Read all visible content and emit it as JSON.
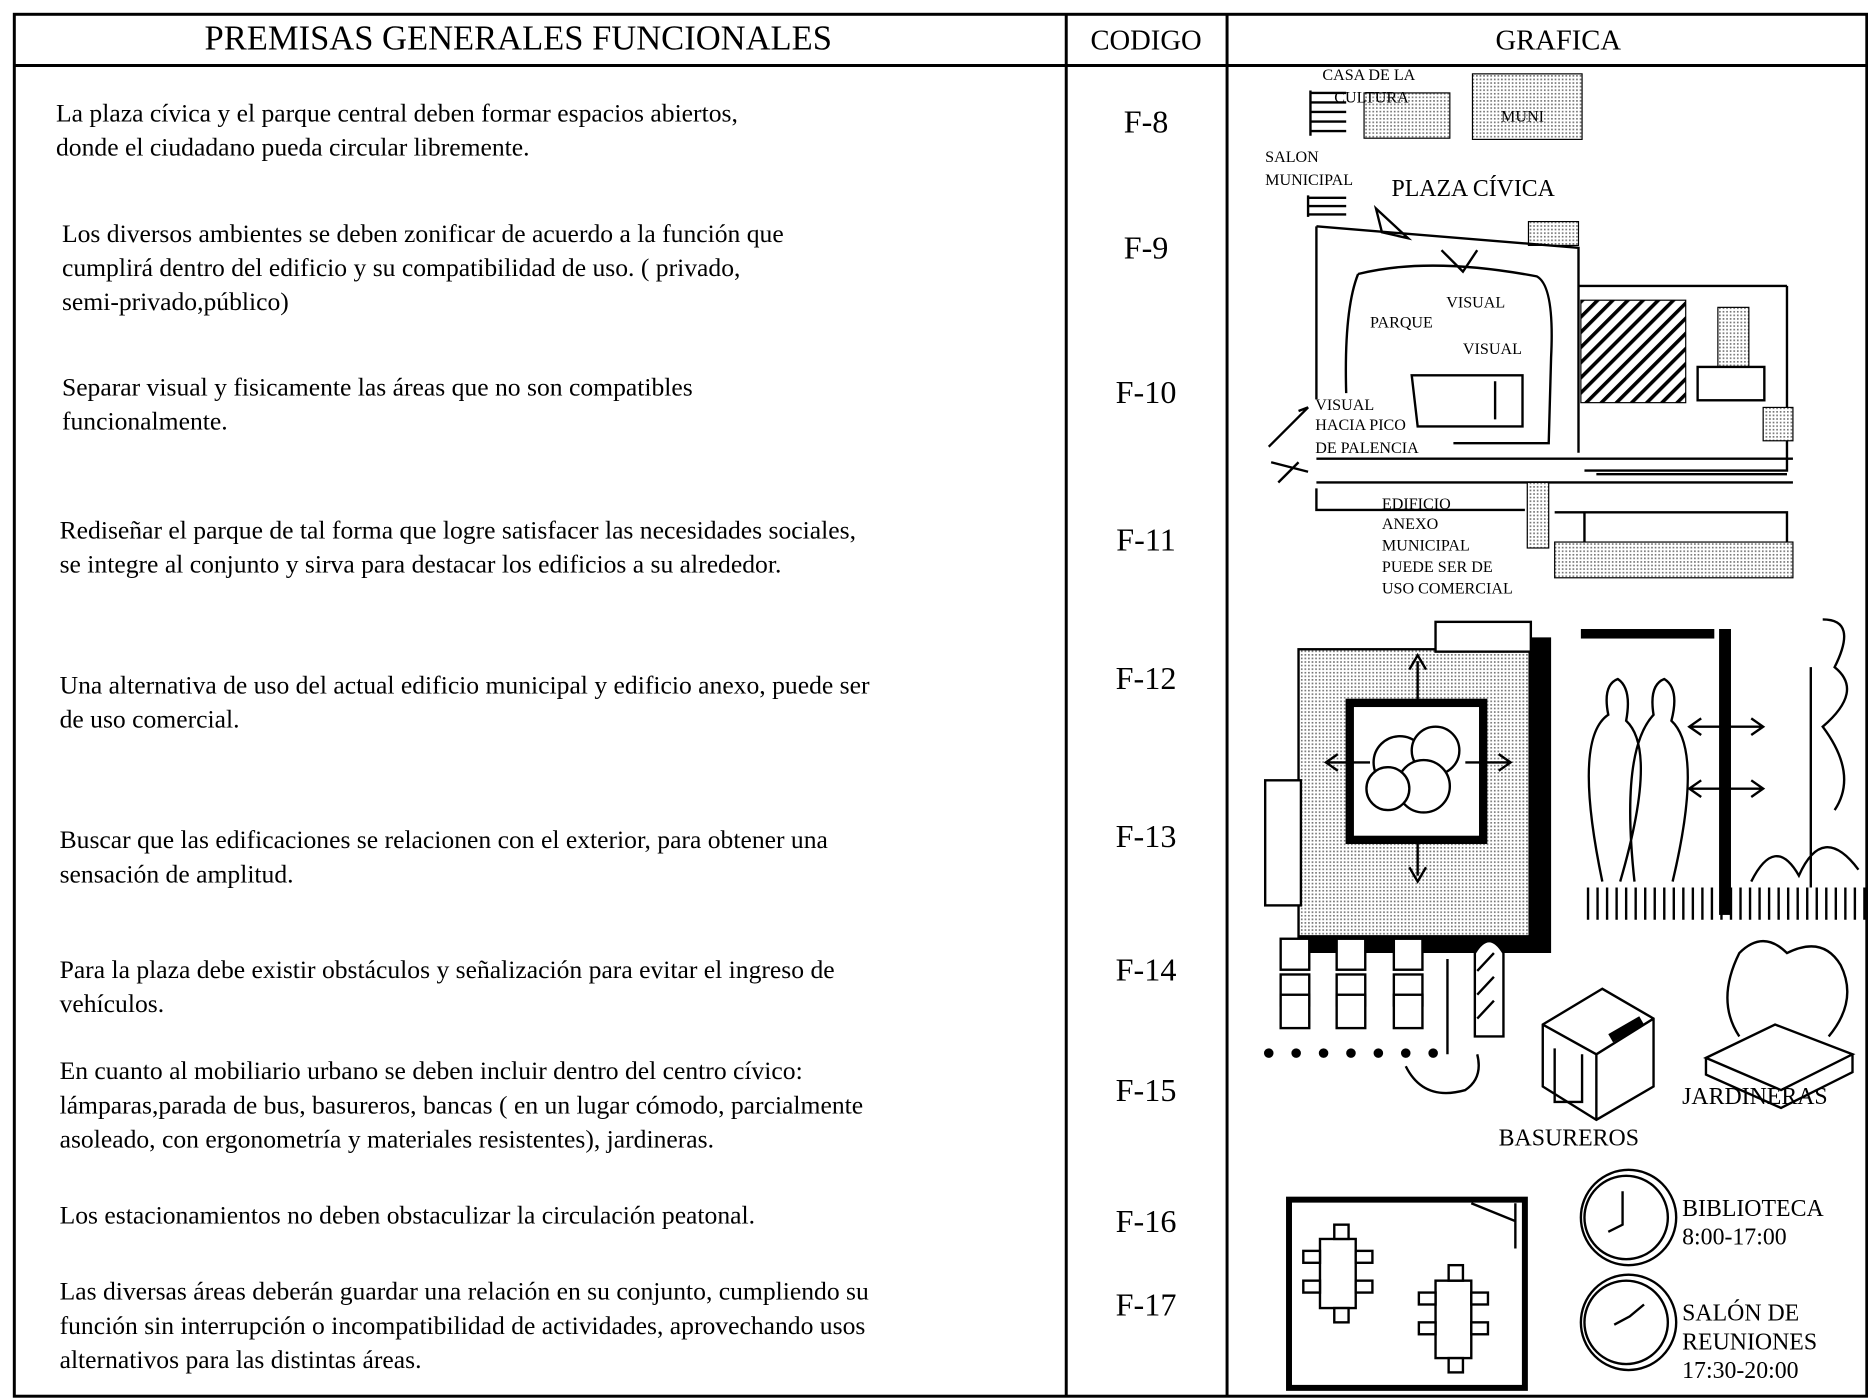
{
  "header": {
    "premisas": "PREMISAS GENERALES FUNCIONALES",
    "codigo": "CODIGO",
    "grafica": "GRAFICA"
  },
  "rows": [
    {
      "lines": [
        "La plaza cívica y el parque central deben formar  espacios abiertos,",
        "donde el ciudadano pueda circular libremente."
      ],
      "code": "F-8"
    },
    {
      "lines": [
        "Los diversos ambientes se deben zonificar de acuerdo a la función que",
        "cumplirá dentro del edificio y su compatibilidad de uso. ( privado,",
        "semi-privado,público)"
      ],
      "code": "F-9"
    },
    {
      "lines": [
        "Separar visual y fisicamente las áreas que no son compatibles",
        "funcionalmente."
      ],
      "code": "F-10"
    },
    {
      "lines": [
        "Rediseñar el parque de tal forma que logre satisfacer las necesidades sociales,",
        "se integre al conjunto y sirva para destacar los edificios a su alrededor."
      ],
      "code": "F-11"
    },
    {
      "lines": [
        "Una alternativa de uso del actual edificio municipal y edificio anexo, puede ser",
        "de uso comercial."
      ],
      "code": "F-12"
    },
    {
      "lines": [
        "Buscar que las edificaciones se relacionen con el exterior, para obtener una",
        "sensación de amplitud."
      ],
      "code": "F-13"
    },
    {
      "lines": [
        "Para  la plaza debe existir obstáculos y señalización para evitar el ingreso de",
        "vehículos."
      ],
      "code": "F-14"
    },
    {
      "lines": [
        "En cuanto al mobiliario urbano se deben incluir dentro del centro cívico:",
        "lámparas,parada de bus, basureros, bancas ( en un lugar cómodo, parcialmente",
        "asoleado, con ergonometría y materiales resistentes), jardineras."
      ],
      "code": "F-15"
    },
    {
      "lines": [
        "Los estacionamientos no deben obstaculizar la circulación peatonal."
      ],
      "code": "F-16"
    },
    {
      "lines": [
        "Las diversas áreas deberán guardar una relación en su conjunto, cumpliendo su",
        "función sin interrupción o incompatibilidad de actividades, aprovechando usos",
        "alternativos para las distintas áreas."
      ],
      "code": "F-17"
    }
  ],
  "graphic": {
    "casa_cultura": [
      "CASA DE LA",
      "CULTURA"
    ],
    "muni": "MUNI",
    "salon_municipal": [
      "SALON",
      "MUNICIPAL"
    ],
    "plaza_civica": "PLAZA CÍVICA",
    "visual_1": "VISUAL",
    "parque": "PARQUE",
    "visual_2": "VISUAL",
    "visual_pico": [
      "VISUAL",
      "HACIA PICO",
      "DE PALENCIA"
    ],
    "edificio_anexo": [
      "EDIFICIO",
      "ANEXO",
      "MUNICIPAL",
      "PUEDE SER DE",
      "USO COMERCIAL"
    ],
    "jardineras": "JARDINERAS",
    "basureros": "BASUREROS",
    "biblioteca": [
      "BIBLIOTECA",
      "8:00-17:00"
    ],
    "salon_reuniones": [
      "SALÓN DE",
      "REUNIONES",
      "17:30-20:00"
    ]
  }
}
